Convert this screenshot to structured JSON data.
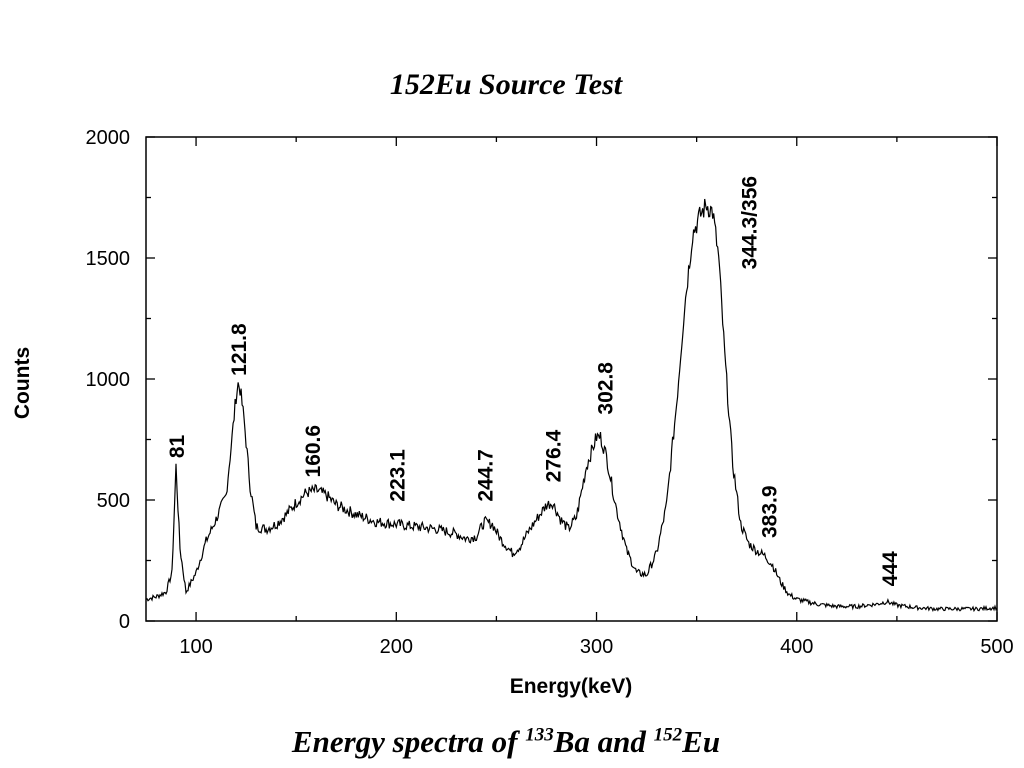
{
  "chart_data": {
    "type": "line",
    "title": "152Eu Source Test",
    "xlabel": "Energy(keV)",
    "ylabel": "Counts",
    "xlim": [
      75,
      500
    ],
    "ylim": [
      0,
      2000
    ],
    "xticks": [
      100,
      200,
      300,
      400,
      500
    ],
    "yticks": [
      0,
      500,
      1000,
      1500,
      2000
    ],
    "grid": false,
    "series": [
      {
        "x": [
          75,
          80,
          85,
          88,
          90,
          92,
          95,
          100,
          105,
          110,
          115,
          118,
          120,
          121,
          122,
          124,
          127,
          130,
          135,
          140,
          145,
          150,
          155,
          160,
          165,
          170,
          180,
          190,
          200,
          210,
          220,
          230,
          235,
          240,
          244,
          248,
          252,
          258,
          262,
          266,
          270,
          275,
          278,
          282,
          286,
          290,
          295,
          300,
          302,
          305,
          310,
          315,
          320,
          325,
          330,
          335,
          340,
          344,
          348,
          352,
          355,
          358,
          361,
          364,
          368,
          372,
          376,
          380,
          384,
          388,
          392,
          396,
          400,
          410,
          420,
          430,
          440,
          445,
          450,
          460,
          470,
          480,
          490,
          500
        ],
        "y": [
          90,
          100,
          120,
          200,
          640,
          300,
          120,
          200,
          330,
          420,
          520,
          760,
          930,
          980,
          960,
          830,
          560,
          390,
          380,
          400,
          440,
          490,
          530,
          540,
          520,
          480,
          440,
          410,
          400,
          390,
          380,
          360,
          340,
          350,
          410,
          400,
          340,
          280,
          310,
          370,
          420,
          480,
          490,
          420,
          380,
          430,
          640,
          760,
          760,
          680,
          460,
          290,
          200,
          190,
          280,
          480,
          900,
          1300,
          1600,
          1680,
          1720,
          1690,
          1500,
          1100,
          650,
          400,
          320,
          290,
          270,
          230,
          160,
          110,
          90,
          70,
          60,
          60,
          70,
          80,
          65,
          55,
          50,
          50,
          50,
          55
        ]
      }
    ],
    "annotations": [
      {
        "text": "81",
        "x": 90,
        "y": 640
      },
      {
        "text": "121.8",
        "x": 121,
        "y": 980
      },
      {
        "text": "160.6",
        "x": 158,
        "y": 560
      },
      {
        "text": "223.1",
        "x": 200,
        "y": 460
      },
      {
        "text": "244.7",
        "x": 244,
        "y": 460
      },
      {
        "text": "276.4",
        "x": 278,
        "y": 540
      },
      {
        "text": "302.8",
        "x": 304,
        "y": 820
      },
      {
        "text": "344.3/356",
        "x": 376,
        "y": 1420
      },
      {
        "text": "383.9",
        "x": 386,
        "y": 310
      },
      {
        "text": "444",
        "x": 446,
        "y": 110
      }
    ]
  },
  "caption": {
    "prefix": "Energy spectra of ",
    "sup1": "133",
    "mid": "Ba and ",
    "sup2": "152",
    "suffix": "Eu"
  }
}
